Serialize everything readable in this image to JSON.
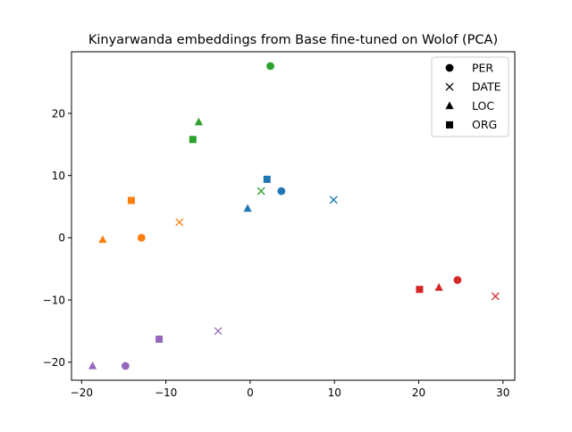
{
  "chart_data": {
    "type": "scatter",
    "title": "Kinyarwanda embeddings from Base fine-tuned on Wolof (PCA)",
    "xlabel": "",
    "ylabel": "",
    "xlim": [
      -21.2,
      31.4
    ],
    "ylim": [
      -22.9,
      29.9
    ],
    "xticks": [
      -20,
      -10,
      0,
      10,
      20,
      30
    ],
    "yticks": [
      -20,
      -10,
      0,
      10,
      20
    ],
    "grid": false,
    "legend_position": "top-right",
    "legend": [
      {
        "label": "PER",
        "marker": "circle"
      },
      {
        "label": "DATE",
        "marker": "x"
      },
      {
        "label": "LOC",
        "marker": "triangle"
      },
      {
        "label": "ORG",
        "marker": "square"
      }
    ],
    "colors": {
      "blue": "#1f77b4",
      "orange": "#ff7f0e",
      "green": "#2ca02c",
      "red": "#d62728",
      "purple": "#9467bd"
    },
    "points": [
      {
        "group": "blue",
        "marker": "circle",
        "x": 3.7,
        "y": 7.5
      },
      {
        "group": "blue",
        "marker": "x",
        "x": 9.9,
        "y": 6.1
      },
      {
        "group": "blue",
        "marker": "triangle",
        "x": -0.3,
        "y": 4.7
      },
      {
        "group": "blue",
        "marker": "square",
        "x": 2.0,
        "y": 9.4
      },
      {
        "group": "orange",
        "marker": "circle",
        "x": -12.9,
        "y": 0.0
      },
      {
        "group": "orange",
        "marker": "x",
        "x": -8.4,
        "y": 2.5
      },
      {
        "group": "orange",
        "marker": "triangle",
        "x": -17.5,
        "y": -0.3
      },
      {
        "group": "orange",
        "marker": "square",
        "x": -14.1,
        "y": 6.0
      },
      {
        "group": "green",
        "marker": "circle",
        "x": 2.4,
        "y": 27.6
      },
      {
        "group": "green",
        "marker": "x",
        "x": 1.3,
        "y": 7.5
      },
      {
        "group": "green",
        "marker": "triangle",
        "x": -6.1,
        "y": 18.6
      },
      {
        "group": "green",
        "marker": "square",
        "x": -6.8,
        "y": 15.8
      },
      {
        "group": "red",
        "marker": "circle",
        "x": 24.6,
        "y": -6.8
      },
      {
        "group": "red",
        "marker": "x",
        "x": 29.1,
        "y": -9.4
      },
      {
        "group": "red",
        "marker": "triangle",
        "x": 22.4,
        "y": -8.0
      },
      {
        "group": "red",
        "marker": "square",
        "x": 20.1,
        "y": -8.3
      },
      {
        "group": "purple",
        "marker": "circle",
        "x": -14.8,
        "y": -20.6
      },
      {
        "group": "purple",
        "marker": "x",
        "x": -3.8,
        "y": -15.0
      },
      {
        "group": "purple",
        "marker": "triangle",
        "x": -18.7,
        "y": -20.6
      },
      {
        "group": "purple",
        "marker": "square",
        "x": -10.8,
        "y": -16.3
      }
    ]
  }
}
